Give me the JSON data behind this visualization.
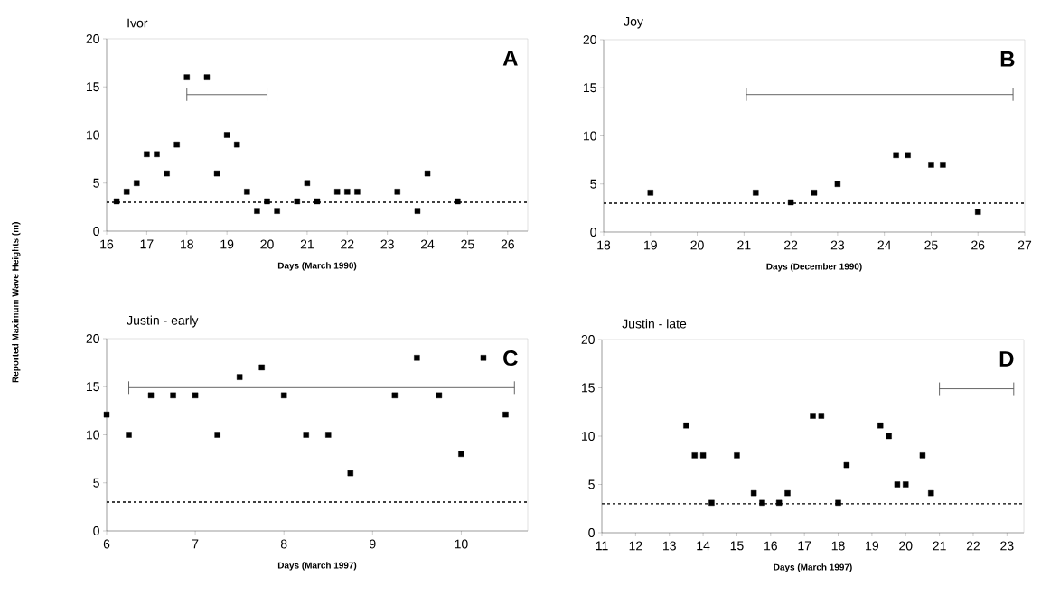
{
  "chart_data": [
    {
      "type": "scatter",
      "title": "Ivor",
      "xlabel": "Days (March 1990)",
      "ylabel": "Reported Maximum Wave Heights (m)",
      "annotations": [
        "A"
      ],
      "marker": "square",
      "xlim": [
        16,
        26.5
      ],
      "xticks": [
        16,
        17,
        18,
        19,
        20,
        21,
        22,
        23,
        24,
        25,
        26
      ],
      "ylim": [
        0,
        20
      ],
      "yticks": [
        0,
        5,
        10,
        15,
        20
      ],
      "ref_lines": [
        {
          "axis": "y",
          "value": 3,
          "color": "#000000",
          "line_style": "dotted"
        }
      ],
      "series": [
        {
          "color": "#000000",
          "x": [
            16.25,
            16.5,
            16.75,
            17,
            17.25,
            17.5,
            17.75,
            18,
            18.5,
            18.75,
            19,
            19.25,
            19.5,
            19.75,
            20,
            20.25,
            20.75,
            21,
            21.25,
            21.75,
            22,
            22.25,
            23.25,
            23.75,
            24,
            24.75
          ],
          "values": [
            3.1,
            4.1,
            5,
            8,
            8,
            6,
            9,
            16,
            16,
            6,
            10,
            9,
            4.1,
            2.1,
            3.1,
            2.1,
            3.1,
            5,
            3.1,
            4.1,
            4.1,
            4.1,
            4.1,
            2.1,
            6,
            3.1
          ]
        },
        {
          "type": "line",
          "color": "#555555",
          "marker": "none",
          "x": [
            18,
            20
          ],
          "values": [
            14.2,
            14.2
          ]
        }
      ]
    },
    {
      "type": "scatter",
      "title": "Joy",
      "xlabel": "Days (December 1990)",
      "annotations": [
        "B"
      ],
      "marker": "square",
      "xlim": [
        18,
        27
      ],
      "xticks": [
        18,
        19,
        20,
        21,
        22,
        23,
        24,
        25,
        26,
        27
      ],
      "ylim": [
        0,
        20
      ],
      "yticks": [
        0,
        5,
        10,
        15,
        20
      ],
      "ref_lines": [
        {
          "axis": "y",
          "value": 3,
          "color": "#000000",
          "line_style": "dotted"
        }
      ],
      "series": [
        {
          "color": "#000000",
          "x": [
            19,
            21.25,
            22,
            22.5,
            23,
            24.25,
            24.5,
            25,
            25.25,
            26
          ],
          "values": [
            4.1,
            4.1,
            3.1,
            4.1,
            5,
            8,
            8,
            7,
            7,
            2.1
          ]
        },
        {
          "type": "line",
          "color": "#555555",
          "marker": "none",
          "x": [
            21.05,
            26.75
          ],
          "values": [
            14.3,
            14.3
          ]
        }
      ]
    },
    {
      "type": "scatter",
      "title": "Justin - early",
      "xlabel": "Days (March 1997)",
      "annotations": [
        "C"
      ],
      "marker": "square",
      "xlim": [
        6,
        10.75
      ],
      "xticks": [
        6,
        7,
        8,
        9,
        10
      ],
      "ylim": [
        0,
        20
      ],
      "yticks": [
        0,
        5,
        10,
        15,
        20
      ],
      "ref_lines": [
        {
          "axis": "y",
          "value": 3,
          "color": "#000000",
          "line_style": "dotted"
        }
      ],
      "series": [
        {
          "color": "#000000",
          "x": [
            6,
            6.25,
            6.5,
            6.75,
            7,
            7.25,
            7.5,
            7.75,
            8,
            8.25,
            8.5,
            8.75,
            9.25,
            9.5,
            9.75,
            10,
            10.25,
            10.5
          ],
          "values": [
            12.1,
            10,
            14.1,
            14.1,
            14.1,
            10,
            16,
            17,
            14.1,
            10,
            10,
            6,
            14.1,
            18,
            14.1,
            8,
            18,
            12.1
          ]
        },
        {
          "type": "line",
          "color": "#555555",
          "marker": "none",
          "x": [
            6.25,
            10.6
          ],
          "values": [
            14.9,
            14.9
          ]
        }
      ]
    },
    {
      "type": "scatter",
      "title": "Justin - late",
      "xlabel": "Days (March 1997)",
      "annotations": [
        "D"
      ],
      "marker": "square",
      "xlim": [
        11,
        23.5
      ],
      "xticks": [
        11,
        12,
        13,
        14,
        15,
        16,
        17,
        18,
        19,
        20,
        21,
        22,
        23
      ],
      "ylim": [
        0,
        20
      ],
      "yticks": [
        0,
        5,
        10,
        15,
        20
      ],
      "ref_lines": [
        {
          "axis": "y",
          "value": 3,
          "color": "#000000",
          "line_style": "dotted"
        }
      ],
      "series": [
        {
          "color": "#000000",
          "x": [
            13.5,
            13.75,
            14,
            14.25,
            15,
            15.5,
            15.75,
            16.25,
            16.5,
            17.25,
            17.5,
            18,
            18.25,
            19.25,
            19.5,
            19.75,
            20,
            20.5,
            20.75
          ],
          "values": [
            11.1,
            8,
            8,
            3.1,
            8,
            4.1,
            3.1,
            3.1,
            4.1,
            12.1,
            12.1,
            3.1,
            7,
            11.1,
            10,
            5,
            5,
            8,
            4.1
          ]
        },
        {
          "type": "line",
          "color": "#555555",
          "marker": "none",
          "x": [
            21,
            23.2
          ],
          "values": [
            14.9,
            14.9
          ]
        }
      ]
    }
  ]
}
